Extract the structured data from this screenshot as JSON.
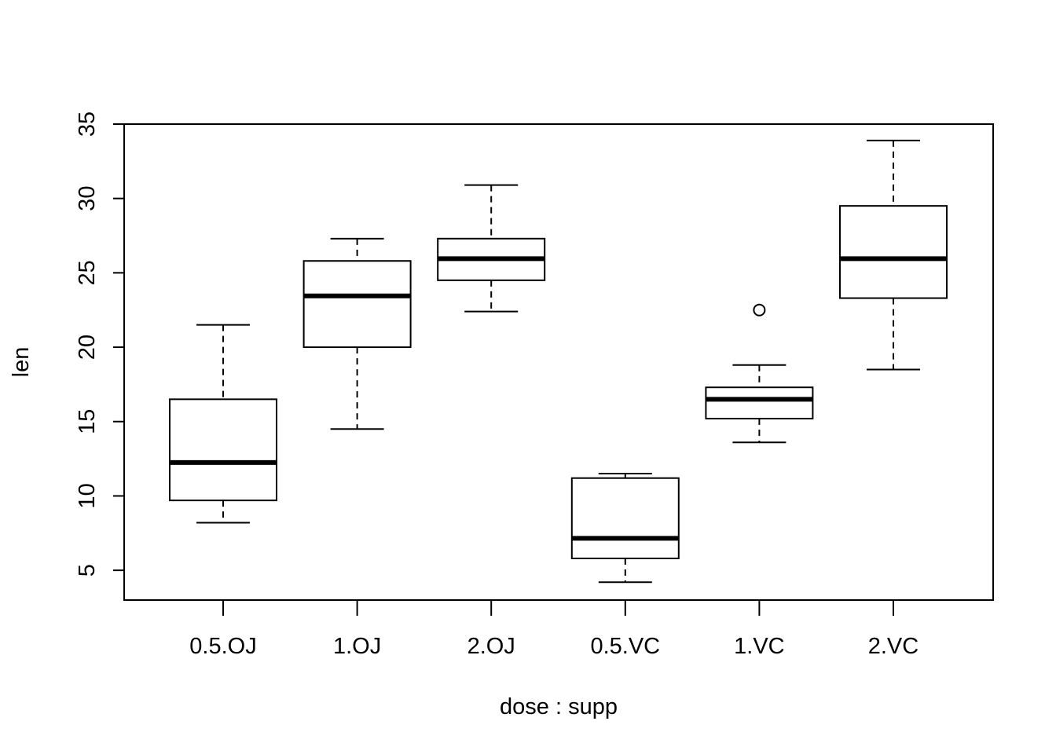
{
  "chart_data": {
    "type": "boxplot",
    "title": "",
    "xlabel": "dose : supp",
    "ylabel": "len",
    "ylim": [
      3,
      35
    ],
    "yticks": [
      5,
      10,
      15,
      20,
      25,
      30,
      35
    ],
    "categories": [
      "0.5.OJ",
      "1.OJ",
      "2.OJ",
      "0.5.VC",
      "1.VC",
      "2.VC"
    ],
    "boxes": [
      {
        "name": "0.5.OJ",
        "min": 8.2,
        "q1": 9.7,
        "median": 12.25,
        "q3": 16.5,
        "max": 21.5,
        "outliers": []
      },
      {
        "name": "1.OJ",
        "min": 14.5,
        "q1": 20.0,
        "median": 23.45,
        "q3": 25.8,
        "max": 27.3,
        "outliers": []
      },
      {
        "name": "2.OJ",
        "min": 22.4,
        "q1": 24.5,
        "median": 25.95,
        "q3": 27.3,
        "max": 30.9,
        "outliers": []
      },
      {
        "name": "0.5.VC",
        "min": 4.2,
        "q1": 5.8,
        "median": 7.15,
        "q3": 11.2,
        "max": 11.5,
        "outliers": []
      },
      {
        "name": "1.VC",
        "min": 13.6,
        "q1": 15.2,
        "median": 16.5,
        "q3": 17.3,
        "max": 18.8,
        "outliers": [
          22.5
        ]
      },
      {
        "name": "2.VC",
        "min": 18.5,
        "q1": 23.3,
        "median": 25.95,
        "q3": 29.5,
        "max": 33.9,
        "outliers": []
      }
    ]
  }
}
